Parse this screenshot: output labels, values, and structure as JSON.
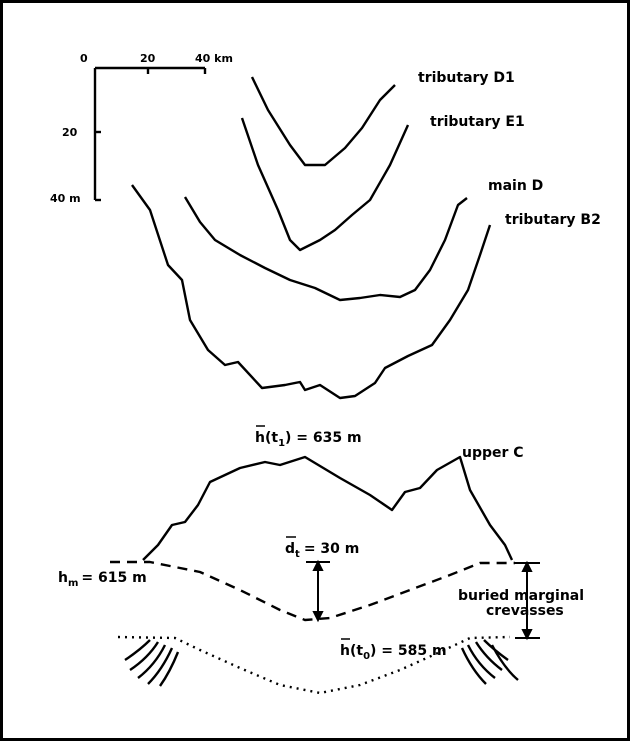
{
  "scale": {
    "x_labels": [
      "0",
      "20",
      "40 km"
    ],
    "y_labels": [
      "20",
      "40 m"
    ]
  },
  "curves": [
    "tributary D1",
    "tributary E1",
    "main D",
    "tributary B2",
    "upper C"
  ],
  "annotations": {
    "h_t1": {
      "symbol": "h",
      "open": "(t",
      "sub": "1",
      "rest": ") = 635 m"
    },
    "d_t": {
      "symbol": "d",
      "sub": "t",
      "rest": "= 30 m"
    },
    "h_m": {
      "symbol": "h",
      "sub": "m",
      "rest": "= 615 m"
    },
    "h_t0": {
      "symbol": "h",
      "open": "(t",
      "sub": "0",
      "rest": ") = 585 m"
    },
    "crevasses": [
      "buried marginal",
      "crevasses"
    ]
  }
}
